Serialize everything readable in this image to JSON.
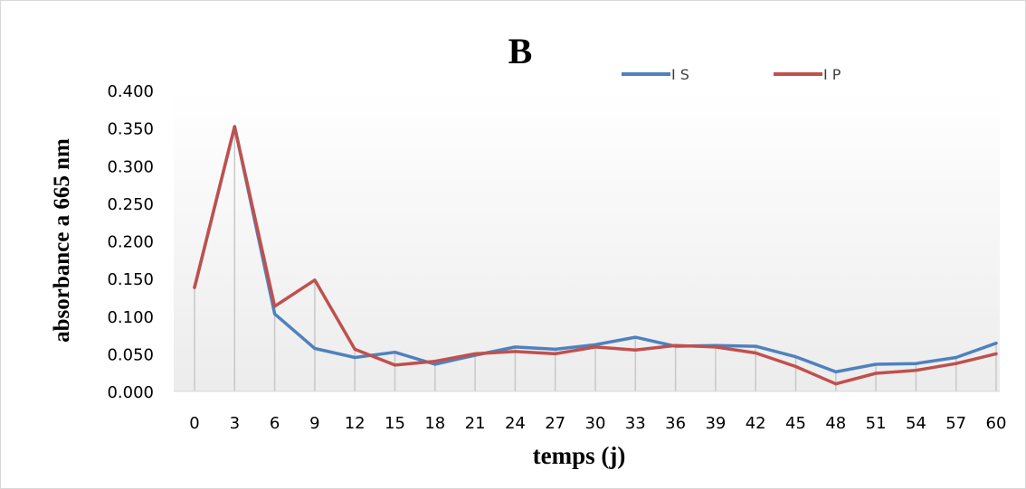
{
  "chart_data": {
    "type": "line",
    "title": "B",
    "xlabel": "temps (j)",
    "ylabel": "absorbance a  665 nm",
    "categories": [
      "0",
      "3",
      "6",
      "9",
      "12",
      "15",
      "18",
      "21",
      "24",
      "27",
      "30",
      "33",
      "36",
      "39",
      "42",
      "45",
      "48",
      "51",
      "54",
      "57",
      "60"
    ],
    "y_ticks": [
      "0.000",
      "0.050",
      "0.100",
      "0.150",
      "0.200",
      "0.250",
      "0.300",
      "0.350",
      "0.400"
    ],
    "ylim": [
      0,
      0.4
    ],
    "legend_position": "top-right",
    "drop_lines": true,
    "series": [
      {
        "name": "I S",
        "color": "#4f81bd",
        "values": [
          0.138,
          0.352,
          0.103,
          0.057,
          0.045,
          0.052,
          0.036,
          0.048,
          0.059,
          0.056,
          0.062,
          0.072,
          0.06,
          0.061,
          0.06,
          0.046,
          0.026,
          0.036,
          0.037,
          0.045,
          0.064
        ]
      },
      {
        "name": "I P",
        "color": "#c0504d",
        "values": [
          0.138,
          0.352,
          0.113,
          0.148,
          0.056,
          0.035,
          0.04,
          0.05,
          0.053,
          0.05,
          0.059,
          0.055,
          0.061,
          0.059,
          0.051,
          0.033,
          0.01,
          0.024,
          0.028,
          0.037,
          0.05
        ]
      }
    ]
  }
}
